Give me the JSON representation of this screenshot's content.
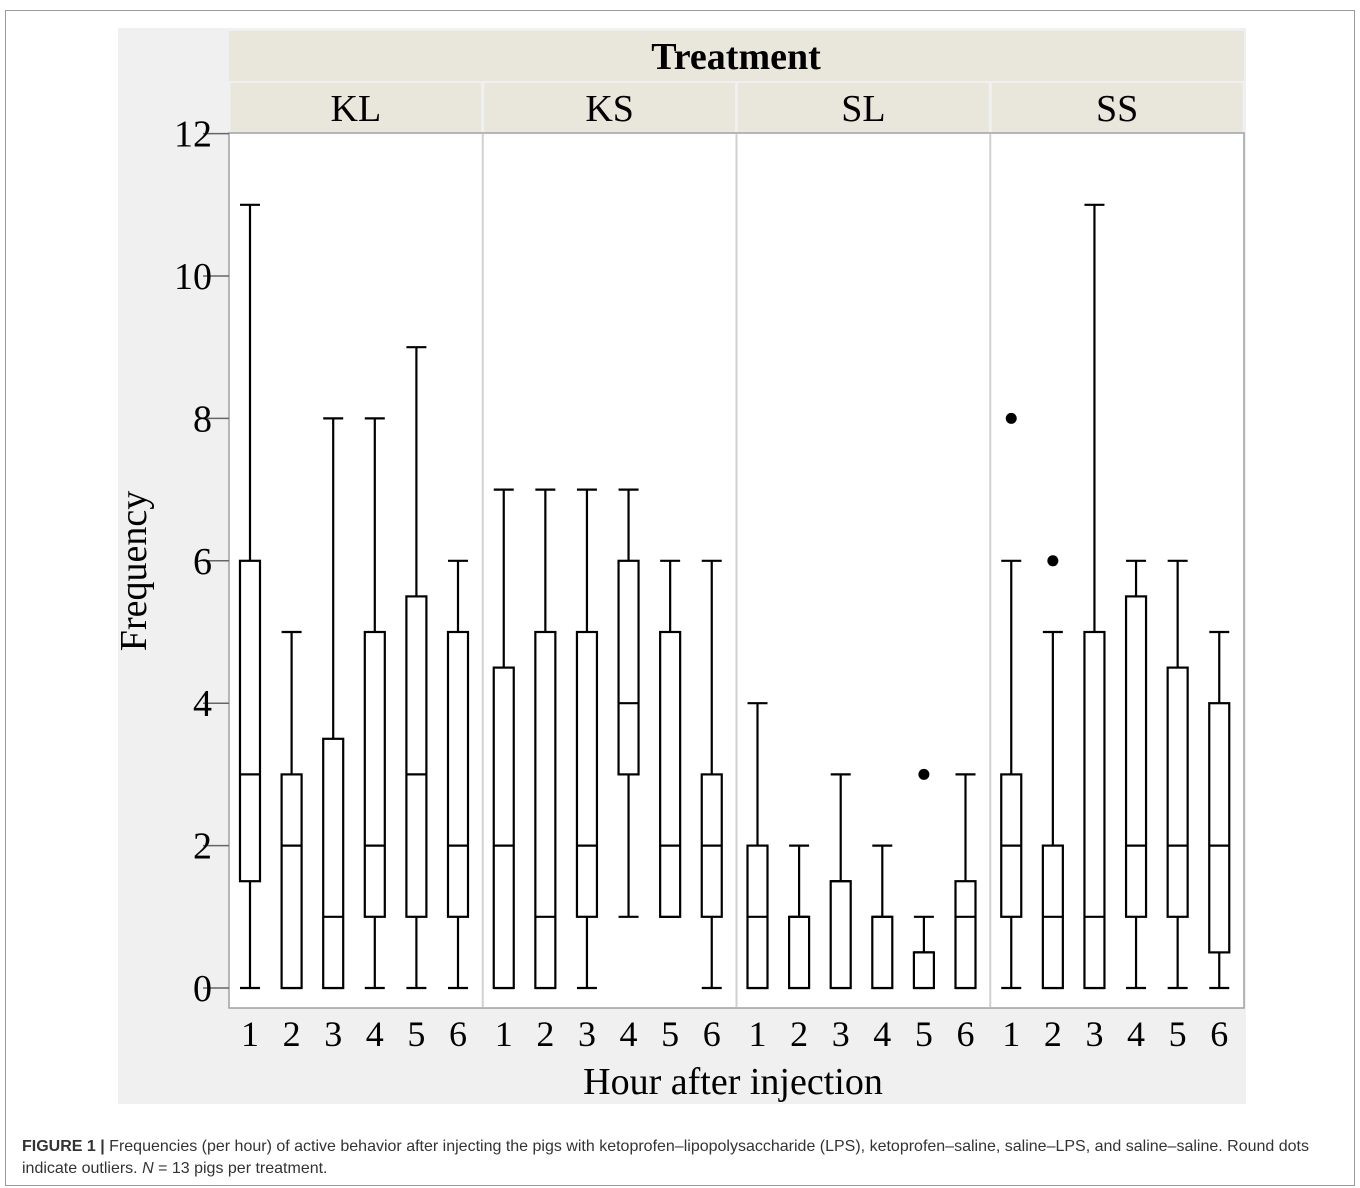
{
  "chart_data": {
    "type": "box",
    "facet_title": "Treatment",
    "facets": [
      "KL",
      "KS",
      "SL",
      "SS"
    ],
    "xlabel": "Hour after injection",
    "ylabel": "Frequency",
    "x_ticks": [
      "1",
      "2",
      "3",
      "4",
      "5",
      "6"
    ],
    "ylim": [
      0,
      12
    ],
    "y_ticks": [
      0,
      2,
      4,
      6,
      8,
      10,
      12
    ],
    "colors": {
      "panel_bg": "#f0f0f0",
      "strip_bg": "#e9e6dc",
      "box_line": "#000000",
      "grid_divider": "#d0d0d0"
    },
    "series": [
      {
        "facet": "KL",
        "boxes": [
          {
            "x": "1",
            "min": 0,
            "q1": 1.5,
            "median": 3,
            "q3": 6,
            "max": 11,
            "outliers": []
          },
          {
            "x": "2",
            "min": 0,
            "q1": 0,
            "median": 2,
            "q3": 3,
            "max": 5,
            "outliers": []
          },
          {
            "x": "3",
            "min": 0,
            "q1": 0,
            "median": 1,
            "q3": 3.5,
            "max": 8,
            "outliers": []
          },
          {
            "x": "4",
            "min": 0,
            "q1": 1,
            "median": 2,
            "q3": 5,
            "max": 8,
            "outliers": []
          },
          {
            "x": "5",
            "min": 0,
            "q1": 1,
            "median": 3,
            "q3": 5.5,
            "max": 9,
            "outliers": []
          },
          {
            "x": "6",
            "min": 0,
            "q1": 1,
            "median": 2,
            "q3": 5,
            "max": 6,
            "outliers": []
          }
        ]
      },
      {
        "facet": "KS",
        "boxes": [
          {
            "x": "1",
            "min": 0,
            "q1": 0,
            "median": 2,
            "q3": 4.5,
            "max": 7,
            "outliers": []
          },
          {
            "x": "2",
            "min": 0,
            "q1": 0,
            "median": 1,
            "q3": 5,
            "max": 7,
            "outliers": []
          },
          {
            "x": "3",
            "min": 0,
            "q1": 1,
            "median": 2,
            "q3": 5,
            "max": 7,
            "outliers": []
          },
          {
            "x": "4",
            "min": 1,
            "q1": 3,
            "median": 4,
            "q3": 6,
            "max": 7,
            "outliers": []
          },
          {
            "x": "5",
            "min": 1,
            "q1": 1,
            "median": 2,
            "q3": 5,
            "max": 6,
            "outliers": []
          },
          {
            "x": "6",
            "min": 0,
            "q1": 1,
            "median": 2,
            "q3": 3,
            "max": 6,
            "outliers": []
          }
        ]
      },
      {
        "facet": "SL",
        "boxes": [
          {
            "x": "1",
            "min": 0,
            "q1": 0,
            "median": 1,
            "q3": 2,
            "max": 4,
            "outliers": []
          },
          {
            "x": "2",
            "min": 0,
            "q1": 0,
            "median": 1,
            "q3": 1,
            "max": 2,
            "outliers": []
          },
          {
            "x": "3",
            "min": 0,
            "q1": 0,
            "median": 1.5,
            "q3": 1.5,
            "max": 3,
            "outliers": []
          },
          {
            "x": "4",
            "min": 0,
            "q1": 0,
            "median": 1,
            "q3": 1,
            "max": 2,
            "outliers": []
          },
          {
            "x": "5",
            "min": 0,
            "q1": 0,
            "median": 0.5,
            "q3": 0.5,
            "max": 1,
            "outliers": [
              3
            ]
          },
          {
            "x": "6",
            "min": 0,
            "q1": 0,
            "median": 1,
            "q3": 1.5,
            "max": 3,
            "outliers": []
          }
        ]
      },
      {
        "facet": "SS",
        "boxes": [
          {
            "x": "1",
            "min": 0,
            "q1": 1,
            "median": 2,
            "q3": 3,
            "max": 6,
            "outliers": [
              8
            ]
          },
          {
            "x": "2",
            "min": 0,
            "q1": 0,
            "median": 1,
            "q3": 2,
            "max": 5,
            "outliers": [
              6
            ]
          },
          {
            "x": "3",
            "min": 0,
            "q1": 0,
            "median": 1,
            "q3": 5,
            "max": 11,
            "outliers": []
          },
          {
            "x": "4",
            "min": 0,
            "q1": 1,
            "median": 2,
            "q3": 5.5,
            "max": 6,
            "outliers": []
          },
          {
            "x": "5",
            "min": 0,
            "q1": 1,
            "median": 2,
            "q3": 4.5,
            "max": 6,
            "outliers": []
          },
          {
            "x": "6",
            "min": 0,
            "q1": 0.5,
            "median": 2,
            "q3": 4,
            "max": 5,
            "outliers": []
          }
        ]
      }
    ]
  },
  "caption": {
    "label": "FIGURE 1 |",
    "text_1": " Frequencies (per hour) of active behavior after injecting the pigs with ketoprofen–lipopolysaccharide (LPS), ketoprofen–saline, saline–LPS, and saline–saline. Round dots indicate outliers. ",
    "n_symbol": "N",
    "text_2": " = 13 pigs per treatment."
  }
}
